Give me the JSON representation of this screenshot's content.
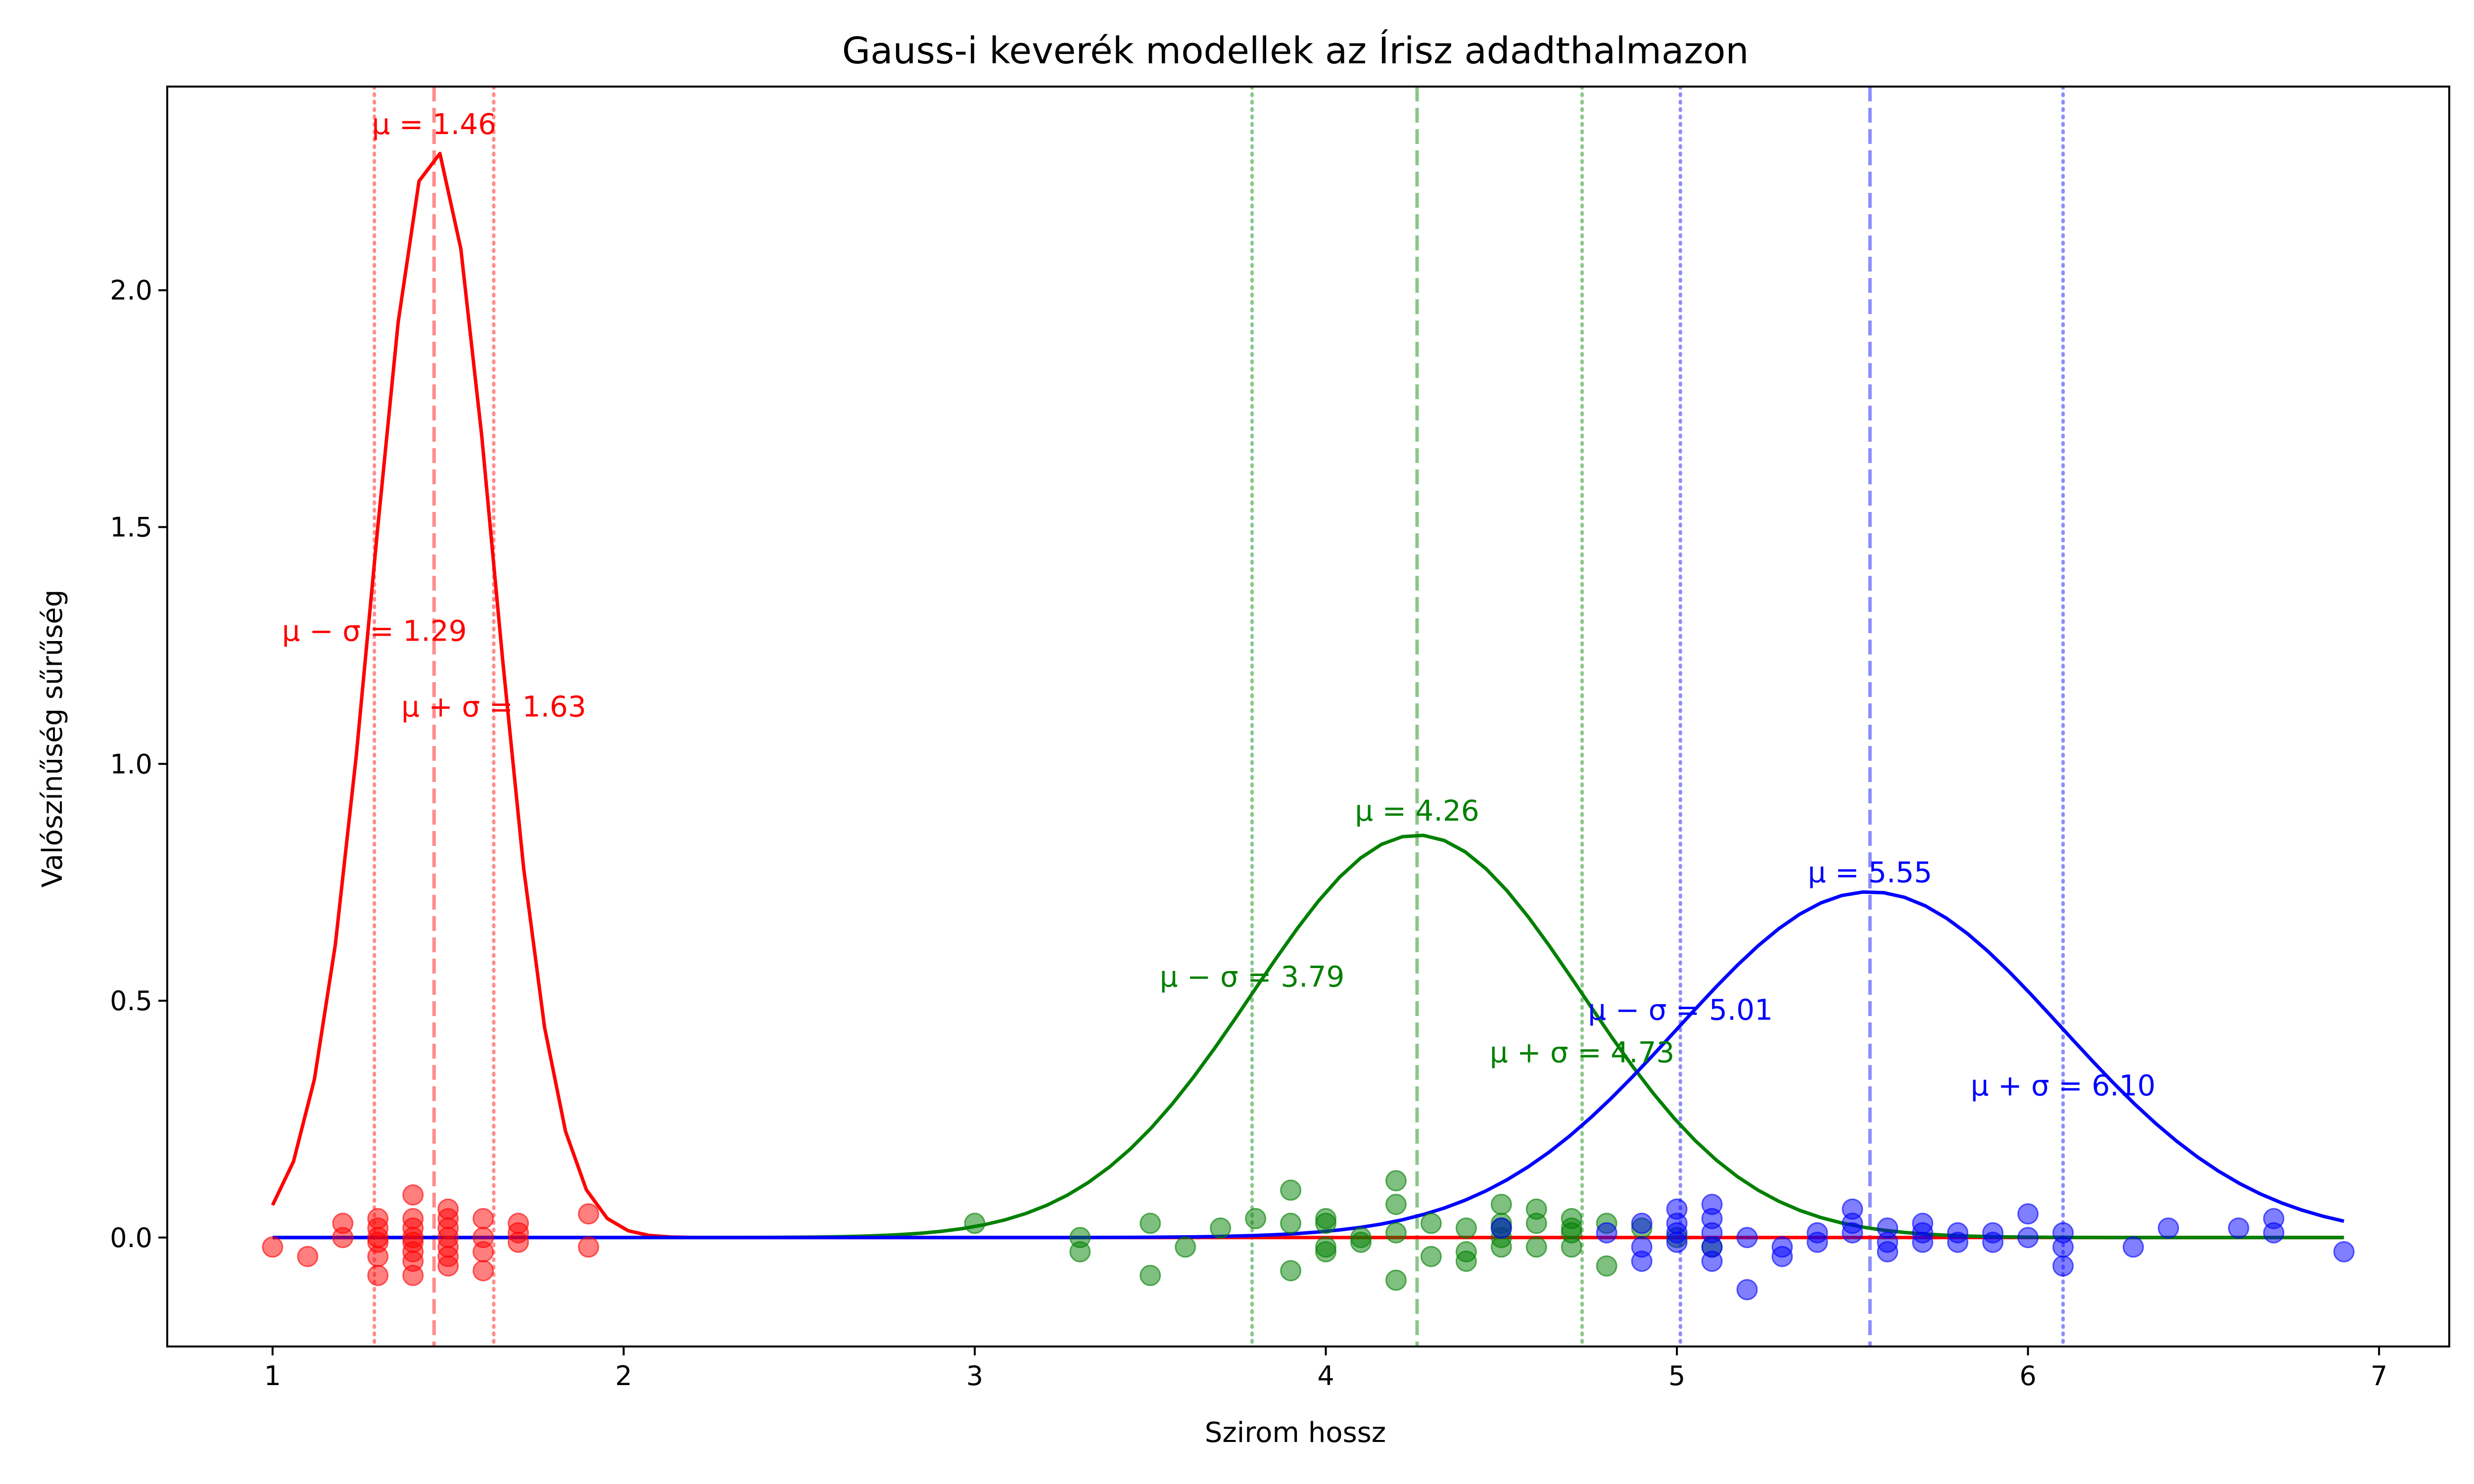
{
  "chart_data": {
    "type": "line",
    "title": "Gauss-i keverék modellek az Írisz adadthalmazon",
    "xlabel": "Szirom hossz",
    "ylabel": "Valószínűség sűrűség",
    "xlim": [
      0.7,
      7.2
    ],
    "ylim": [
      -0.23,
      2.43
    ],
    "xticks": [
      "1",
      "2",
      "3",
      "4",
      "5",
      "6",
      "7"
    ],
    "xtick_values": [
      1,
      2,
      3,
      4,
      5,
      6,
      7
    ],
    "yticks": [
      "0.0",
      "0.5",
      "1.0",
      "1.5",
      "2.0"
    ],
    "ytick_values": [
      0,
      0.5,
      1.0,
      1.5,
      2.0
    ],
    "grid": false,
    "x_range": [
      1.0,
      6.9
    ],
    "series": [
      {
        "id": "red",
        "color": "#ff0000",
        "mu": 1.46,
        "sigma": 0.1735,
        "weight": 1.0,
        "labels": {
          "mu": "μ = 1.46",
          "mu_minus": "μ − σ = 1.29",
          "mu_plus": "μ + σ = 1.63"
        },
        "mu_minus_value": 1.29,
        "mu_plus_value": 1.63,
        "points": [
          [
            1.0,
            -0.02
          ],
          [
            1.1,
            -0.04
          ],
          [
            1.2,
            0.03
          ],
          [
            1.2,
            0.0
          ],
          [
            1.3,
            0.04
          ],
          [
            1.3,
            0.02
          ],
          [
            1.3,
            0.0
          ],
          [
            1.3,
            -0.01
          ],
          [
            1.3,
            -0.04
          ],
          [
            1.3,
            -0.08
          ],
          [
            1.4,
            0.09
          ],
          [
            1.4,
            0.04
          ],
          [
            1.4,
            0.02
          ],
          [
            1.4,
            0.0
          ],
          [
            1.4,
            -0.01
          ],
          [
            1.4,
            -0.03
          ],
          [
            1.4,
            -0.05
          ],
          [
            1.4,
            -0.08
          ],
          [
            1.5,
            0.06
          ],
          [
            1.5,
            0.04
          ],
          [
            1.5,
            0.02
          ],
          [
            1.5,
            0.0
          ],
          [
            1.5,
            -0.02
          ],
          [
            1.5,
            -0.04
          ],
          [
            1.5,
            -0.06
          ],
          [
            1.6,
            0.04
          ],
          [
            1.6,
            0.0
          ],
          [
            1.6,
            -0.03
          ],
          [
            1.6,
            -0.07
          ],
          [
            1.7,
            0.03
          ],
          [
            1.7,
            0.01
          ],
          [
            1.7,
            -0.01
          ],
          [
            1.9,
            0.05
          ],
          [
            1.9,
            -0.02
          ]
        ]
      },
      {
        "id": "green",
        "color": "#008000",
        "mu": 4.26,
        "sigma": 0.4695,
        "weight": 1.0,
        "labels": {
          "mu": "μ = 4.26",
          "mu_minus": "μ − σ = 3.79",
          "mu_plus": "μ + σ = 4.73"
        },
        "mu_minus_value": 3.79,
        "mu_plus_value": 4.73,
        "points": [
          [
            3.0,
            0.03
          ],
          [
            3.3,
            0.0
          ],
          [
            3.3,
            -0.03
          ],
          [
            3.5,
            0.03
          ],
          [
            3.5,
            -0.08
          ],
          [
            3.6,
            -0.02
          ],
          [
            3.7,
            0.02
          ],
          [
            3.8,
            0.04
          ],
          [
            3.9,
            0.1
          ],
          [
            3.9,
            0.03
          ],
          [
            3.9,
            -0.07
          ],
          [
            4.0,
            0.04
          ],
          [
            4.0,
            0.03
          ],
          [
            4.0,
            -0.02
          ],
          [
            4.0,
            -0.03
          ],
          [
            4.1,
            0.0
          ],
          [
            4.1,
            -0.01
          ],
          [
            4.2,
            0.12
          ],
          [
            4.2,
            0.07
          ],
          [
            4.2,
            0.01
          ],
          [
            4.2,
            -0.09
          ],
          [
            4.3,
            0.03
          ],
          [
            4.3,
            -0.04
          ],
          [
            4.4,
            0.02
          ],
          [
            4.4,
            -0.03
          ],
          [
            4.4,
            -0.05
          ],
          [
            4.5,
            0.07
          ],
          [
            4.5,
            0.03
          ],
          [
            4.5,
            0.02
          ],
          [
            4.5,
            0.0
          ],
          [
            4.5,
            -0.02
          ],
          [
            4.6,
            0.06
          ],
          [
            4.6,
            0.03
          ],
          [
            4.6,
            -0.02
          ],
          [
            4.7,
            0.04
          ],
          [
            4.7,
            0.02
          ],
          [
            4.7,
            0.01
          ],
          [
            4.7,
            -0.02
          ],
          [
            4.8,
            0.03
          ],
          [
            4.8,
            -0.06
          ],
          [
            4.9,
            0.02
          ],
          [
            5.0,
            0.0
          ],
          [
            5.1,
            -0.02
          ]
        ]
      },
      {
        "id": "blue",
        "color": "#0000ff",
        "mu": 5.55,
        "sigma": 0.5465,
        "weight": 1.0,
        "labels": {
          "mu": "μ = 5.55",
          "mu_minus": "μ − σ = 5.01",
          "mu_plus": "μ + σ = 6.10"
        },
        "mu_minus_value": 5.01,
        "mu_plus_value": 6.1,
        "points": [
          [
            4.5,
            0.02
          ],
          [
            4.8,
            0.01
          ],
          [
            4.9,
            0.03
          ],
          [
            4.9,
            -0.02
          ],
          [
            4.9,
            -0.05
          ],
          [
            5.0,
            0.06
          ],
          [
            5.0,
            0.03
          ],
          [
            5.0,
            0.01
          ],
          [
            5.0,
            -0.01
          ],
          [
            5.1,
            0.07
          ],
          [
            5.1,
            0.04
          ],
          [
            5.1,
            0.01
          ],
          [
            5.1,
            -0.02
          ],
          [
            5.1,
            -0.05
          ],
          [
            5.2,
            0.0
          ],
          [
            5.2,
            -0.11
          ],
          [
            5.3,
            -0.02
          ],
          [
            5.3,
            -0.04
          ],
          [
            5.4,
            0.01
          ],
          [
            5.4,
            -0.01
          ],
          [
            5.5,
            0.06
          ],
          [
            5.5,
            0.03
          ],
          [
            5.5,
            0.01
          ],
          [
            5.6,
            0.02
          ],
          [
            5.6,
            -0.01
          ],
          [
            5.6,
            -0.03
          ],
          [
            5.7,
            0.03
          ],
          [
            5.7,
            0.01
          ],
          [
            5.7,
            -0.01
          ],
          [
            5.8,
            0.01
          ],
          [
            5.8,
            -0.01
          ],
          [
            5.9,
            0.01
          ],
          [
            5.9,
            -0.01
          ],
          [
            6.0,
            0.05
          ],
          [
            6.0,
            0.0
          ],
          [
            6.1,
            0.01
          ],
          [
            6.1,
            -0.02
          ],
          [
            6.1,
            -0.06
          ],
          [
            6.3,
            -0.02
          ],
          [
            6.4,
            0.02
          ],
          [
            6.6,
            0.02
          ],
          [
            6.7,
            0.04
          ],
          [
            6.7,
            0.01
          ],
          [
            6.9,
            -0.03
          ]
        ]
      }
    ]
  }
}
